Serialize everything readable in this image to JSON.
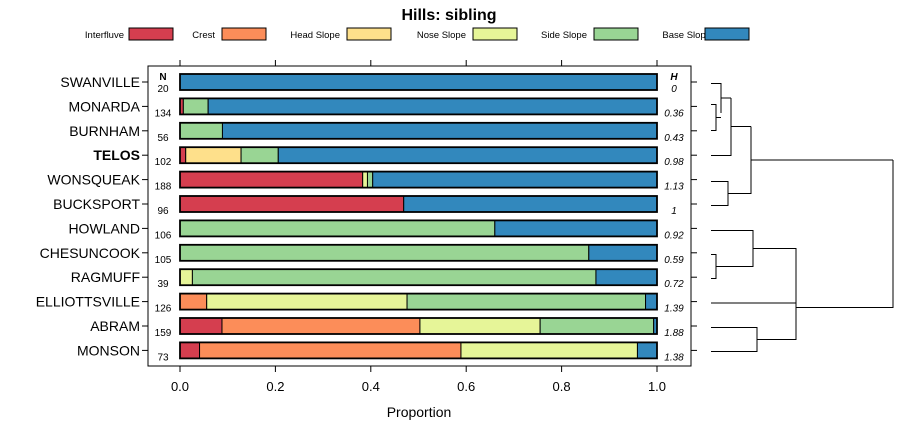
{
  "chart_data": {
    "type": "bar",
    "stacked": true,
    "orientation": "horizontal",
    "title": "Hills: sibling",
    "xlabel": "Proportion",
    "ylabel": "",
    "xlim": [
      0,
      1
    ],
    "xticks": [
      "0.0",
      "0.2",
      "0.4",
      "0.6",
      "0.8",
      "1.0"
    ],
    "n_header": "N",
    "h_header": "H",
    "legend_position": "top",
    "legend": [
      {
        "name": "Interfluve",
        "color": "#d53e4f"
      },
      {
        "name": "Crest",
        "color": "#fc8d59"
      },
      {
        "name": "Head Slope",
        "color": "#fee08b"
      },
      {
        "name": "Nose Slope",
        "color": "#e6f598"
      },
      {
        "name": "Side Slope",
        "color": "#99d594"
      },
      {
        "name": "Base Slope",
        "color": "#3288bd"
      }
    ],
    "rows": [
      {
        "label": "SWANVILLE",
        "bold": false,
        "n": "20",
        "h": "0",
        "values": [
          0,
          0,
          0,
          0,
          0,
          1.0
        ]
      },
      {
        "label": "MONARDA",
        "bold": false,
        "n": "134",
        "h": "0.36",
        "values": [
          0.007,
          0,
          0,
          0,
          0.052,
          0.941
        ]
      },
      {
        "label": "BURNHAM",
        "bold": false,
        "n": "56",
        "h": "0.43",
        "values": [
          0,
          0,
          0,
          0,
          0.089,
          0.911
        ]
      },
      {
        "label": "TELOS",
        "bold": true,
        "n": "102",
        "h": "0.98",
        "values": [
          0.012,
          0,
          0.116,
          0,
          0.078,
          0.794
        ]
      },
      {
        "label": "WONSQUEAK",
        "bold": false,
        "n": "188",
        "h": "1.13",
        "values": [
          0.383,
          0,
          0,
          0.01,
          0.011,
          0.596
        ]
      },
      {
        "label": "BUCKSPORT",
        "bold": false,
        "n": "96",
        "h": "1",
        "values": [
          0.469,
          0,
          0,
          0,
          0,
          0.531
        ]
      },
      {
        "label": "HOWLAND",
        "bold": false,
        "n": "106",
        "h": "0.92",
        "values": [
          0,
          0,
          0,
          0,
          0.66,
          0.34
        ]
      },
      {
        "label": "CHESUNCOOK",
        "bold": false,
        "n": "105",
        "h": "0.59",
        "values": [
          0,
          0,
          0,
          0,
          0.857,
          0.143
        ]
      },
      {
        "label": "RAGMUFF",
        "bold": false,
        "n": "39",
        "h": "0.72",
        "values": [
          0,
          0,
          0,
          0.026,
          0.846,
          0.128
        ]
      },
      {
        "label": "ELLIOTTSVILLE",
        "bold": false,
        "n": "126",
        "h": "1.39",
        "values": [
          0,
          0.056,
          0,
          0.42,
          0.5,
          0.024
        ]
      },
      {
        "label": "ABRAM",
        "bold": false,
        "n": "159",
        "h": "1.88",
        "values": [
          0.088,
          0.415,
          0,
          0.252,
          0.238,
          0.007
        ]
      },
      {
        "label": "MONSON",
        "bold": false,
        "n": "73",
        "h": "1.38",
        "values": [
          0.041,
          0.548,
          0,
          0.37,
          0,
          0.041
        ]
      }
    ]
  }
}
